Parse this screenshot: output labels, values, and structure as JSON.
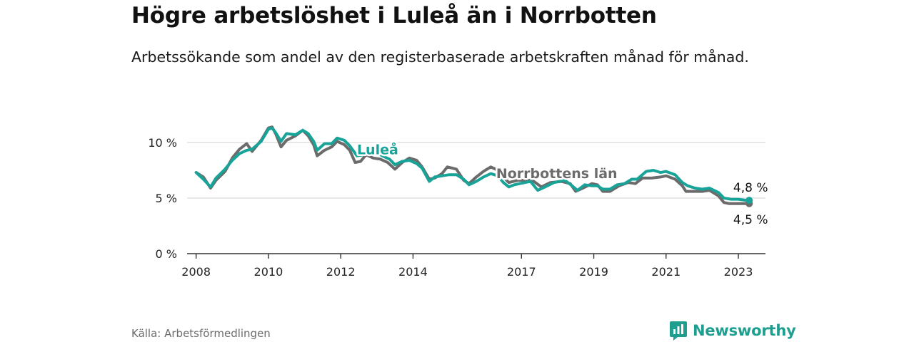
{
  "header": {
    "title": "Högre arbetslöshet i Luleå än i Norrbotten",
    "subtitle": "Arbetssökande som andel av den registerbaserade arbetskraften månad för månad."
  },
  "footer": {
    "source": "Källa: Arbetsförmedlingen",
    "brand": "Newsworthy"
  },
  "colors": {
    "lulea": "#17a398",
    "norrbotten": "#6b6b6b",
    "grid": "#d9d9d9",
    "axis": "#333333",
    "brand": "#1e9e8f"
  },
  "chart_data": {
    "type": "line",
    "title": "Högre arbetslöshet i Luleå än i Norrbotten",
    "xlabel": "",
    "ylabel": "",
    "xlim": [
      2007.75,
      2023.75
    ],
    "ylim": [
      0,
      10
    ],
    "x_ticks": [
      2008,
      2010,
      2012,
      2014,
      2017,
      2019,
      2021,
      2023
    ],
    "x_tick_labels": [
      "2008",
      "2010",
      "2012",
      "2014",
      "2017",
      "2019",
      "2021",
      "2023"
    ],
    "y_ticks": [
      0,
      5,
      10
    ],
    "y_tick_labels": [
      "0 %",
      "5 %",
      "10 %"
    ],
    "grid": true,
    "series": [
      {
        "name": "Norrbottens län",
        "label": "Norrbottens län",
        "end_label": "4,5 %",
        "points": [
          [
            2008.0,
            7.3
          ],
          [
            2008.2,
            6.9
          ],
          [
            2008.4,
            5.9
          ],
          [
            2008.55,
            6.6
          ],
          [
            2008.8,
            7.4
          ],
          [
            2009.0,
            8.6
          ],
          [
            2009.2,
            9.4
          ],
          [
            2009.4,
            9.9
          ],
          [
            2009.55,
            9.2
          ],
          [
            2009.8,
            10.2
          ],
          [
            2010.0,
            11.3
          ],
          [
            2010.1,
            11.4
          ],
          [
            2010.2,
            10.8
          ],
          [
            2010.35,
            9.6
          ],
          [
            2010.5,
            10.2
          ],
          [
            2010.75,
            10.6
          ],
          [
            2010.95,
            11.1
          ],
          [
            2011.1,
            10.6
          ],
          [
            2011.25,
            9.8
          ],
          [
            2011.35,
            8.8
          ],
          [
            2011.55,
            9.3
          ],
          [
            2011.75,
            9.6
          ],
          [
            2011.9,
            10.1
          ],
          [
            2012.1,
            9.8
          ],
          [
            2012.25,
            9.3
          ],
          [
            2012.4,
            8.2
          ],
          [
            2012.55,
            8.3
          ],
          [
            2012.7,
            8.9
          ],
          [
            2012.9,
            8.6
          ],
          [
            2013.1,
            8.5
          ],
          [
            2013.3,
            8.2
          ],
          [
            2013.5,
            7.6
          ],
          [
            2013.7,
            8.2
          ],
          [
            2013.9,
            8.6
          ],
          [
            2014.1,
            8.4
          ],
          [
            2014.25,
            7.8
          ],
          [
            2014.45,
            6.7
          ],
          [
            2014.6,
            6.8
          ],
          [
            2014.8,
            7.2
          ],
          [
            2014.95,
            7.8
          ],
          [
            2015.2,
            7.6
          ],
          [
            2015.4,
            6.6
          ],
          [
            2015.55,
            6.3
          ],
          [
            2015.75,
            6.9
          ],
          [
            2015.95,
            7.4
          ],
          [
            2016.15,
            7.8
          ],
          [
            2016.35,
            7.5
          ],
          [
            2016.5,
            6.9
          ],
          [
            2016.65,
            6.4
          ],
          [
            2016.9,
            6.6
          ],
          [
            2017.3,
            6.6
          ],
          [
            2017.55,
            6.0
          ],
          [
            2017.8,
            6.4
          ],
          [
            2018.1,
            6.5
          ],
          [
            2018.35,
            6.3
          ],
          [
            2018.5,
            5.6
          ],
          [
            2018.7,
            5.9
          ],
          [
            2018.95,
            6.3
          ],
          [
            2019.1,
            6.2
          ],
          [
            2019.25,
            5.6
          ],
          [
            2019.45,
            5.6
          ],
          [
            2019.7,
            6.1
          ],
          [
            2019.95,
            6.4
          ],
          [
            2020.15,
            6.3
          ],
          [
            2020.35,
            6.8
          ],
          [
            2020.6,
            6.8
          ],
          [
            2020.85,
            6.9
          ],
          [
            2021.0,
            7.0
          ],
          [
            2021.25,
            6.7
          ],
          [
            2021.45,
            6.1
          ],
          [
            2021.55,
            5.6
          ],
          [
            2021.8,
            5.6
          ],
          [
            2022.0,
            5.6
          ],
          [
            2022.2,
            5.7
          ],
          [
            2022.45,
            5.2
          ],
          [
            2022.6,
            4.6
          ],
          [
            2022.75,
            4.5
          ],
          [
            2022.95,
            4.5
          ],
          [
            2023.2,
            4.5
          ],
          [
            2023.3,
            4.5
          ]
        ]
      },
      {
        "name": "Luleå",
        "label": "Luleå",
        "end_label": "4,8 %",
        "points": [
          [
            2008.0,
            7.3
          ],
          [
            2008.2,
            6.7
          ],
          [
            2008.4,
            6.0
          ],
          [
            2008.55,
            6.8
          ],
          [
            2008.8,
            7.6
          ],
          [
            2009.0,
            8.4
          ],
          [
            2009.2,
            9.0
          ],
          [
            2009.4,
            9.3
          ],
          [
            2009.55,
            9.4
          ],
          [
            2009.8,
            10.1
          ],
          [
            2010.0,
            11.2
          ],
          [
            2010.1,
            11.3
          ],
          [
            2010.2,
            10.9
          ],
          [
            2010.35,
            10.1
          ],
          [
            2010.5,
            10.8
          ],
          [
            2010.75,
            10.7
          ],
          [
            2010.95,
            11.1
          ],
          [
            2011.1,
            10.8
          ],
          [
            2011.25,
            10.1
          ],
          [
            2011.35,
            9.3
          ],
          [
            2011.55,
            9.9
          ],
          [
            2011.75,
            9.9
          ],
          [
            2011.9,
            10.4
          ],
          [
            2012.1,
            10.2
          ],
          [
            2012.25,
            9.7
          ],
          [
            2012.45,
            8.8
          ],
          [
            2013.0,
            9.1
          ],
          [
            2013.15,
            8.8
          ],
          [
            2013.35,
            8.5
          ],
          [
            2013.5,
            8.0
          ],
          [
            2013.7,
            8.3
          ],
          [
            2013.9,
            8.4
          ],
          [
            2014.1,
            8.1
          ],
          [
            2014.25,
            7.7
          ],
          [
            2014.45,
            6.5
          ],
          [
            2014.6,
            6.9
          ],
          [
            2014.8,
            7.0
          ],
          [
            2015.0,
            7.1
          ],
          [
            2015.2,
            7.1
          ],
          [
            2015.4,
            6.7
          ],
          [
            2015.55,
            6.2
          ],
          [
            2015.75,
            6.5
          ],
          [
            2015.95,
            6.9
          ],
          [
            2016.15,
            7.2
          ],
          [
            2016.35,
            7.0
          ],
          [
            2016.5,
            6.4
          ],
          [
            2016.65,
            6.0
          ],
          [
            2016.8,
            6.2
          ],
          [
            2017.25,
            6.5
          ],
          [
            2017.45,
            5.7
          ],
          [
            2017.65,
            6.0
          ],
          [
            2017.9,
            6.4
          ],
          [
            2018.2,
            6.6
          ],
          [
            2018.4,
            6.1
          ],
          [
            2018.55,
            5.7
          ],
          [
            2018.75,
            6.2
          ],
          [
            2018.95,
            6.1
          ],
          [
            2019.1,
            6.1
          ],
          [
            2019.25,
            5.8
          ],
          [
            2019.45,
            5.8
          ],
          [
            2019.65,
            6.2
          ],
          [
            2019.85,
            6.3
          ],
          [
            2020.05,
            6.7
          ],
          [
            2020.2,
            6.7
          ],
          [
            2020.45,
            7.4
          ],
          [
            2020.65,
            7.5
          ],
          [
            2020.85,
            7.3
          ],
          [
            2021.0,
            7.4
          ],
          [
            2021.25,
            7.1
          ],
          [
            2021.45,
            6.4
          ],
          [
            2021.6,
            6.1
          ],
          [
            2021.8,
            5.9
          ],
          [
            2022.0,
            5.8
          ],
          [
            2022.2,
            5.9
          ],
          [
            2022.45,
            5.5
          ],
          [
            2022.6,
            5.0
          ],
          [
            2022.8,
            4.9
          ],
          [
            2023.0,
            4.9
          ],
          [
            2023.2,
            4.8
          ],
          [
            2023.3,
            4.8
          ]
        ]
      }
    ]
  }
}
